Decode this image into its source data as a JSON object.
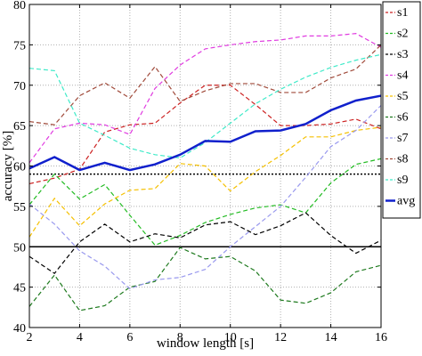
{
  "chart_data": {
    "type": "line",
    "xlabel": "window length [s]",
    "ylabel": "accuracy [%]",
    "xlim": [
      2,
      16
    ],
    "ylim": [
      40,
      80
    ],
    "xticks": [
      2,
      4,
      6,
      8,
      10,
      12,
      14,
      16
    ],
    "yticks": [
      40,
      45,
      50,
      55,
      60,
      65,
      70,
      75,
      80
    ],
    "grid": true,
    "legend_position": "right-outside-top",
    "x": [
      2,
      3,
      4,
      5,
      6,
      7,
      8,
      9,
      10,
      11,
      12,
      13,
      14,
      15,
      16
    ],
    "series": [
      {
        "name": "s1",
        "color": "#cc2222",
        "dash": "dashed",
        "values": [
          57.8,
          58.5,
          59.6,
          64.2,
          65.1,
          65.3,
          67.8,
          70.0,
          70.0,
          67.6,
          65.0,
          65.0,
          65.2,
          65.8,
          64.6
        ]
      },
      {
        "name": "s2",
        "color": "#22bb22",
        "dash": "dashed",
        "values": [
          55.2,
          59.0,
          55.9,
          57.7,
          53.9,
          50.2,
          51.4,
          53.0,
          54.0,
          54.8,
          55.2,
          54.2,
          57.9,
          60.2,
          60.9
        ]
      },
      {
        "name": "s3",
        "color": "#000000",
        "dash": "dashed",
        "values": [
          48.8,
          46.7,
          50.6,
          52.8,
          50.6,
          51.6,
          51.1,
          52.7,
          53.1,
          51.5,
          52.6,
          54.2,
          51.4,
          49.2,
          50.8
        ]
      },
      {
        "name": "s4",
        "color": "#e03be0",
        "dash": "dashed",
        "values": [
          60.4,
          64.6,
          65.3,
          65.1,
          63.9,
          69.6,
          72.5,
          74.5,
          75.0,
          75.4,
          75.6,
          76.1,
          76.1,
          76.4,
          74.7
        ]
      },
      {
        "name": "s5",
        "color": "#f5c000",
        "dash": "dashed",
        "values": [
          51.2,
          56.0,
          52.6,
          55.3,
          57.0,
          57.2,
          60.3,
          60.0,
          56.9,
          59.3,
          61.3,
          63.6,
          63.6,
          64.4,
          64.8
        ]
      },
      {
        "name": "s6",
        "color": "#1e7a1e",
        "dash": "dashed",
        "values": [
          42.6,
          46.5,
          42.1,
          42.7,
          45.0,
          45.7,
          49.9,
          48.5,
          48.8,
          47.0,
          43.4,
          43.0,
          44.3,
          46.9,
          47.7
        ]
      },
      {
        "name": "s7",
        "color": "#9999ee",
        "dash": "dashed",
        "values": [
          55.3,
          52.8,
          49.5,
          47.6,
          44.8,
          45.9,
          46.2,
          47.2,
          50.0,
          52.5,
          55.0,
          58.6,
          62.4,
          64.4,
          67.5
        ]
      },
      {
        "name": "s8",
        "color": "#a04a3a",
        "dash": "dashed",
        "values": [
          65.5,
          65.1,
          68.7,
          70.3,
          68.4,
          72.3,
          68.0,
          69.3,
          70.2,
          70.2,
          69.1,
          69.1,
          70.9,
          72.0,
          75.0
        ]
      },
      {
        "name": "s9",
        "color": "#3eeac8",
        "dash": "dashed",
        "values": [
          72.1,
          71.8,
          65.3,
          63.8,
          62.2,
          61.4,
          61.0,
          62.9,
          65.3,
          67.7,
          69.5,
          71.0,
          72.2,
          73.1,
          73.8
        ]
      },
      {
        "name": "avg",
        "color": "#1020cc",
        "dash": "solid",
        "values": [
          59.7,
          61.1,
          59.5,
          60.4,
          59.5,
          60.2,
          61.4,
          63.1,
          63.0,
          64.3,
          64.4,
          65.2,
          66.9,
          68.1,
          68.7
        ]
      }
    ],
    "reference_lines": [
      {
        "y": 59.0,
        "color": "#000000",
        "dash": "dotted"
      },
      {
        "y": 50.0,
        "color": "#000000",
        "dash": "solid"
      }
    ]
  }
}
